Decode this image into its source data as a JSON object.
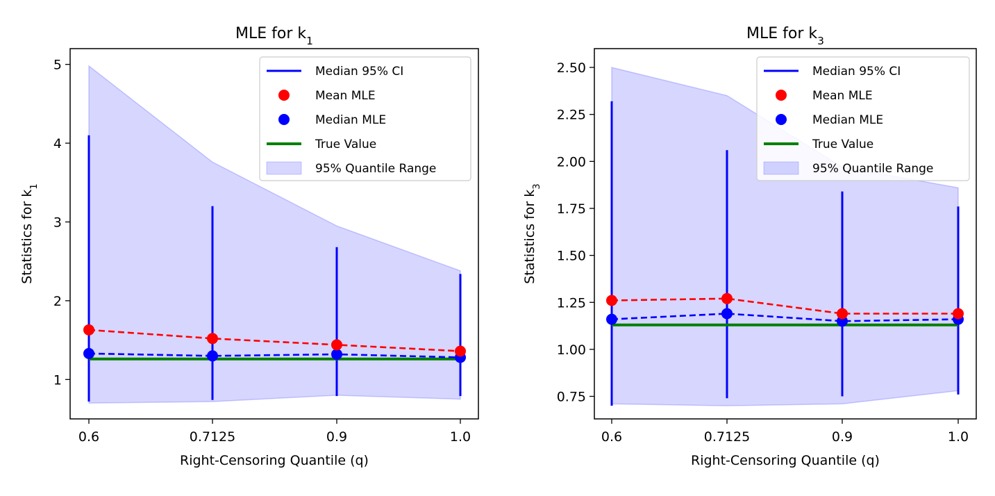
{
  "chart_data": [
    {
      "type": "line",
      "title": "MLE for k",
      "title_sub": "1",
      "xlabel": "Right-Censoring Quantile (q)",
      "ylabel": "Statistics for k",
      "ylabel_sub": "1",
      "categories": [
        "0.6",
        "0.7125",
        "0.9",
        "1.0"
      ],
      "ylim": [
        0.5,
        5.2
      ],
      "yticks": [
        1,
        2,
        3,
        4,
        5
      ],
      "ytick_labels": [
        "1",
        "2",
        "3",
        "4",
        "5"
      ],
      "series": [
        {
          "name": "Mean MLE",
          "color": "#ff0000",
          "style": "dashed",
          "values": [
            1.63,
            1.52,
            1.44,
            1.36
          ]
        },
        {
          "name": "Median MLE",
          "color": "#0000ff",
          "style": "dashed",
          "values": [
            1.33,
            1.3,
            1.32,
            1.28
          ]
        },
        {
          "name": "True Value",
          "color": "#008000",
          "style": "solid",
          "values": [
            1.26,
            1.26,
            1.26,
            1.26
          ]
        },
        {
          "name": "Median 95% CI",
          "color": "#0000ff",
          "type": "errorbar",
          "low": [
            0.72,
            0.74,
            0.79,
            0.79
          ],
          "high": [
            4.1,
            3.2,
            2.68,
            2.34
          ]
        },
        {
          "name": "95% Quantile Range",
          "color": "#ccccff",
          "type": "band",
          "low": [
            0.7,
            0.72,
            0.8,
            0.75
          ],
          "high": [
            4.98,
            3.76,
            2.95,
            2.38
          ]
        }
      ],
      "legend": {
        "position": "top-right",
        "entries": [
          "Median 95% CI",
          "Mean MLE",
          "Median MLE",
          "True Value",
          "95% Quantile Range"
        ]
      }
    },
    {
      "type": "line",
      "title": "MLE for k",
      "title_sub": "3",
      "xlabel": "Right-Censoring Quantile (q)",
      "ylabel": "Statistics for k",
      "ylabel_sub": "3",
      "categories": [
        "0.6",
        "0.7125",
        "0.9",
        "1.0"
      ],
      "ylim": [
        0.63,
        2.6
      ],
      "yticks": [
        0.75,
        1.0,
        1.25,
        1.5,
        1.75,
        2.0,
        2.25,
        2.5
      ],
      "ytick_labels": [
        "0.75",
        "1.00",
        "1.25",
        "1.50",
        "1.75",
        "2.00",
        "2.25",
        "2.50"
      ],
      "series": [
        {
          "name": "Mean MLE",
          "color": "#ff0000",
          "style": "dashed",
          "values": [
            1.26,
            1.27,
            1.19,
            1.19
          ]
        },
        {
          "name": "Median MLE",
          "color": "#0000ff",
          "style": "dashed",
          "values": [
            1.16,
            1.19,
            1.15,
            1.16
          ]
        },
        {
          "name": "True Value",
          "color": "#008000",
          "style": "solid",
          "values": [
            1.13,
            1.13,
            1.13,
            1.13
          ]
        },
        {
          "name": "Median 95% CI",
          "color": "#0000ff",
          "type": "errorbar",
          "low": [
            0.7,
            0.74,
            0.75,
            0.76
          ],
          "high": [
            2.32,
            2.06,
            1.84,
            1.76
          ]
        },
        {
          "name": "95% Quantile Range",
          "color": "#ccccff",
          "type": "band",
          "low": [
            0.71,
            0.7,
            0.71,
            0.78
          ],
          "high": [
            2.5,
            2.35,
            1.97,
            1.86
          ]
        }
      ],
      "legend": {
        "position": "top-right",
        "entries": [
          "Median 95% CI",
          "Mean MLE",
          "Median MLE",
          "True Value",
          "95% Quantile Range"
        ]
      }
    }
  ]
}
